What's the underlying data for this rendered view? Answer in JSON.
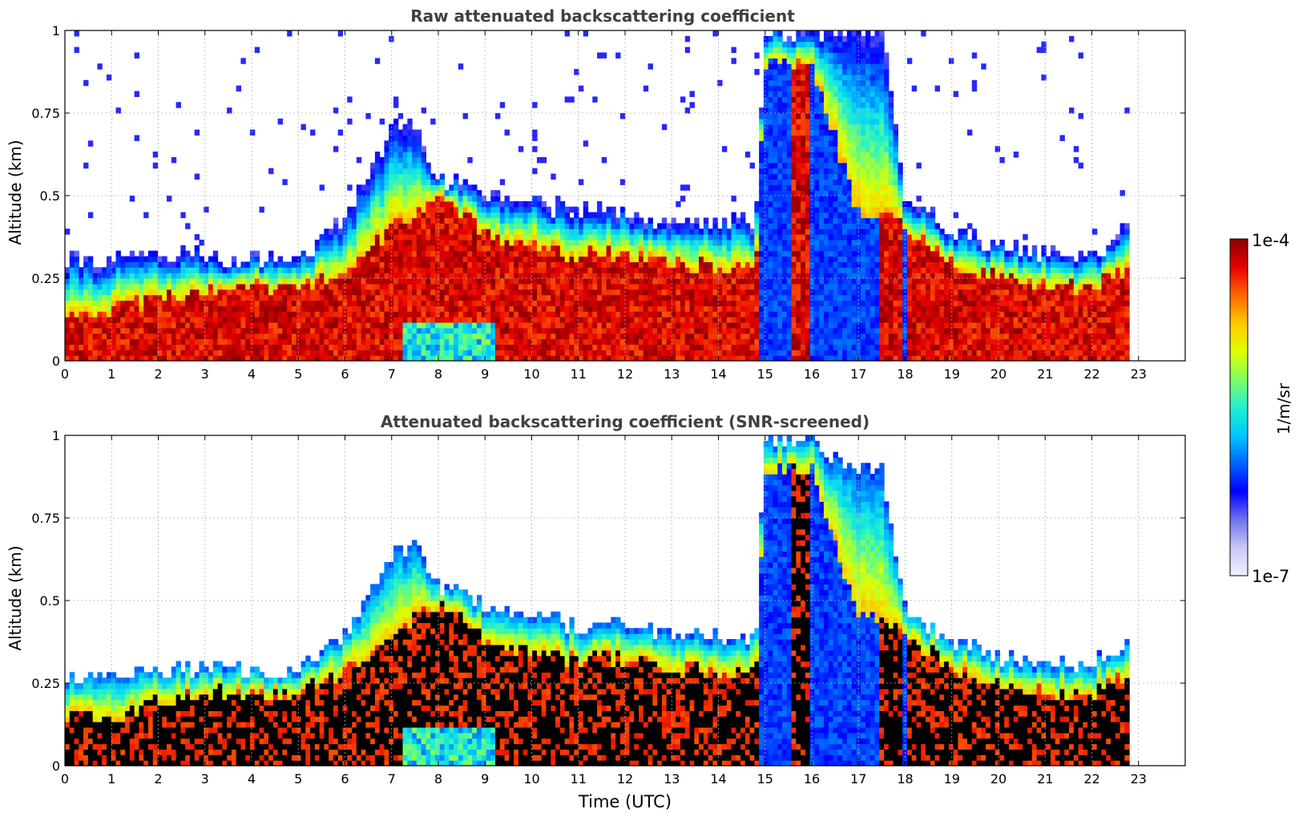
{
  "chart_data": [
    {
      "type": "heatmap",
      "title": "Raw attenuated backscattering coefficient",
      "xlabel": "",
      "ylabel": "Altitude (km)",
      "xlim": [
        0,
        24
      ],
      "ylim": [
        0,
        1
      ],
      "xticks": [
        "0",
        "1",
        "2",
        "3",
        "4",
        "5",
        "6",
        "7",
        "8",
        "9",
        "10",
        "11",
        "12",
        "13",
        "14",
        "15",
        "16",
        "17",
        "18",
        "19",
        "20",
        "21",
        "22",
        "23"
      ],
      "yticks": [
        "0",
        "0.25",
        "0.5",
        "0.75",
        "1"
      ],
      "grid": true,
      "data_end_hour": 22.8,
      "layer_profile": {
        "hours": [
          0,
          1,
          2,
          3,
          4,
          5,
          6,
          7,
          7.5,
          8,
          8.5,
          9,
          10,
          11,
          12,
          13,
          14,
          14.8,
          15,
          16,
          17,
          17.5,
          18,
          19,
          20,
          21,
          22,
          22.8
        ],
        "top_km": [
          0.15,
          0.15,
          0.2,
          0.22,
          0.22,
          0.22,
          0.28,
          0.4,
          0.45,
          0.5,
          0.45,
          0.38,
          0.35,
          0.32,
          0.33,
          0.3,
          0.28,
          0.28,
          0.9,
          0.9,
          0.45,
          0.45,
          0.4,
          0.3,
          0.25,
          0.22,
          0.22,
          0.28
        ],
        "noise_top_km": [
          0.3,
          0.3,
          0.32,
          0.32,
          0.3,
          0.32,
          0.42,
          0.7,
          0.72,
          0.55,
          0.55,
          0.5,
          0.48,
          0.45,
          0.45,
          0.42,
          0.42,
          0.42,
          1.0,
          1.0,
          1.0,
          1.0,
          0.5,
          0.4,
          0.35,
          0.33,
          0.33,
          0.4
        ]
      }
    },
    {
      "type": "heatmap",
      "title": "Attenuated backscattering coefficient (SNR-screened)",
      "xlabel": "Time (UTC)",
      "ylabel": "Altitude (km)",
      "xlim": [
        0,
        24
      ],
      "ylim": [
        0,
        1
      ],
      "xticks": [
        "0",
        "1",
        "2",
        "3",
        "4",
        "5",
        "6",
        "7",
        "8",
        "9",
        "10",
        "11",
        "12",
        "13",
        "14",
        "15",
        "16",
        "17",
        "18",
        "19",
        "20",
        "21",
        "22",
        "23"
      ],
      "yticks": [
        "0",
        "0.25",
        "0.5",
        "0.75",
        "1"
      ],
      "grid": true,
      "data_end_hour": 22.8,
      "saturated_color": "#000000"
    }
  ],
  "colorbar": {
    "label": "1/m/sr",
    "max_label": "1e-4",
    "min_label": "1e-7",
    "colors": [
      "#f0f0ff",
      "#c8c8f5",
      "#7070f0",
      "#0000ff",
      "#0064ff",
      "#00c8ff",
      "#20f0d0",
      "#80ff60",
      "#e0ff00",
      "#ffc800",
      "#ff6400",
      "#e60000",
      "#8b0000"
    ]
  }
}
